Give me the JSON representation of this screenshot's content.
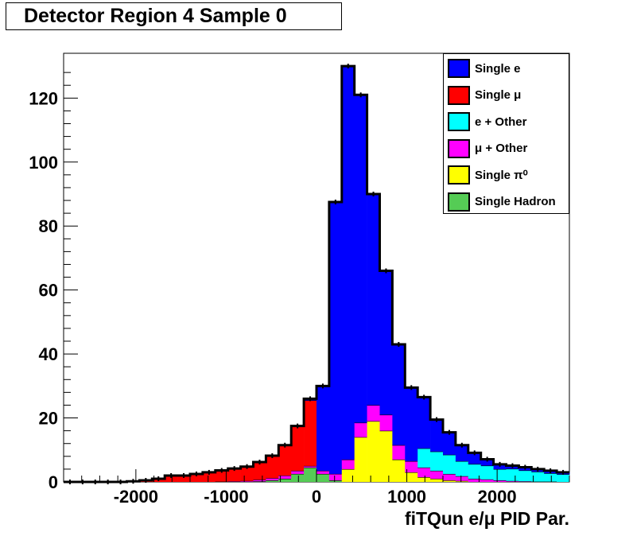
{
  "chart_data": {
    "type": "bar",
    "subtype": "stacked-histogram",
    "title": "Detector Region 4 Sample 0",
    "xlabel": "fiTQun e/μ PID Par.",
    "ylabel": "",
    "xlim": [
      -2800,
      2800
    ],
    "ylim": [
      0,
      134
    ],
    "xticks": [
      -2000,
      -1000,
      0,
      1000,
      2000
    ],
    "yticks": [
      0,
      20,
      40,
      60,
      80,
      100,
      120
    ],
    "xtick_labels": [
      "-2000",
      "-1000",
      "0",
      "1000",
      "2000"
    ],
    "ytick_labels": [
      "0",
      "20",
      "40",
      "60",
      "80",
      "100",
      "120"
    ],
    "bin_edges": [
      -2800,
      -2660,
      -2520,
      -2380,
      -2240,
      -2100,
      -1960,
      -1820,
      -1680,
      -1540,
      -1400,
      -1260,
      -1120,
      -980,
      -840,
      -700,
      -560,
      -420,
      -280,
      -140,
      0,
      140,
      280,
      420,
      560,
      700,
      840,
      980,
      1120,
      1260,
      1400,
      1540,
      1680,
      1820,
      1960,
      2100,
      2240,
      2380,
      2520,
      2660,
      2800
    ],
    "series": [
      {
        "name": "Single Hadron",
        "color": "#55cc55",
        "values": [
          0,
          0,
          0,
          0,
          0,
          0,
          0,
          0,
          0,
          0,
          0,
          0,
          0,
          0,
          0,
          0.2,
          0.5,
          1,
          2.5,
          4.5,
          2.5,
          0.5,
          0,
          0,
          0,
          0,
          0,
          0,
          0,
          0,
          0,
          0,
          0,
          0,
          0,
          0,
          0,
          0,
          0,
          0
        ]
      },
      {
        "name": "Single π⁰",
        "color": "#ffff00",
        "values": [
          0,
          0,
          0,
          0,
          0,
          0,
          0,
          0,
          0,
          0,
          0,
          0,
          0,
          0,
          0,
          0,
          0,
          0,
          0,
          0,
          0,
          0,
          4,
          14,
          19,
          16,
          7,
          3,
          1.5,
          1,
          0.5,
          0.3,
          0,
          0,
          0,
          0,
          0,
          0,
          0,
          0
        ]
      },
      {
        "name": "μ + Other",
        "color": "#ff00ff",
        "values": [
          0,
          0,
          0,
          0,
          0,
          0,
          0,
          0,
          0,
          0,
          0,
          0,
          0.1,
          0.2,
          0.3,
          0.5,
          0.7,
          1,
          1,
          0.5,
          1,
          2,
          3,
          4.5,
          5,
          5,
          4.5,
          3.5,
          3,
          2.5,
          2,
          1.5,
          1,
          0.8,
          0.5,
          0.3,
          0.2,
          0.1,
          0.1,
          0
        ]
      },
      {
        "name": "e + Other",
        "color": "#00ffff",
        "values": [
          0,
          0,
          0,
          0,
          0,
          0,
          0,
          0,
          0,
          0,
          0,
          0,
          0,
          0,
          0,
          0,
          0,
          0,
          0,
          0,
          0,
          0,
          0,
          0,
          0,
          0,
          0,
          0,
          6,
          6,
          6,
          4.7,
          4.6,
          4.3,
          3.5,
          3.8,
          3.4,
          3.1,
          2.6,
          2.4
        ]
      },
      {
        "name": "Single μ",
        "color": "#ff0000",
        "values": [
          0,
          0,
          0,
          0,
          0,
          0.2,
          0.5,
          1,
          2,
          2,
          2.5,
          3,
          3.5,
          4,
          4.5,
          5.5,
          7,
          9.5,
          14,
          20.5,
          0,
          0,
          0,
          0,
          0,
          0,
          0,
          0,
          0,
          0,
          0,
          0,
          0,
          0,
          0,
          0,
          0,
          0,
          0,
          0
        ]
      },
      {
        "name": "Single e",
        "color": "#0000ff",
        "values": [
          0,
          0,
          0,
          0,
          0,
          0,
          0,
          0,
          0,
          0,
          0,
          0,
          0,
          0,
          0,
          0,
          0,
          0,
          0,
          0.5,
          26.5,
          85,
          123,
          102.5,
          66,
          45,
          31.5,
          23,
          16,
          10,
          7,
          5,
          3.5,
          2,
          1.5,
          1,
          1,
          0.8,
          0.8,
          0.6
        ]
      }
    ],
    "totals": [
      0,
      0,
      0,
      0,
      0,
      0.2,
      0.5,
      1,
      2,
      2,
      2.5,
      3,
      3.6,
      4.2,
      4.8,
      6.2,
      8.2,
      11.5,
      17.5,
      26,
      30,
      87.5,
      130,
      121,
      90,
      66,
      43,
      29.5,
      26.5,
      19.5,
      15.5,
      11.5,
      9.1,
      7.1,
      5.5,
      5.1,
      4.6,
      4,
      3.5,
      3
    ]
  },
  "legend": {
    "items": [
      {
        "label": "Single e",
        "color": "#0000ff"
      },
      {
        "label": "Single  μ",
        "color": "#ff0000"
      },
      {
        "label": "e + Other",
        "color": "#00ffff"
      },
      {
        "label": "μ + Other",
        "color": "#ff00ff"
      },
      {
        "label": "Single  π⁰",
        "color": "#ffff00"
      },
      {
        "label": "Single Hadron",
        "color": "#55cc55"
      }
    ]
  }
}
